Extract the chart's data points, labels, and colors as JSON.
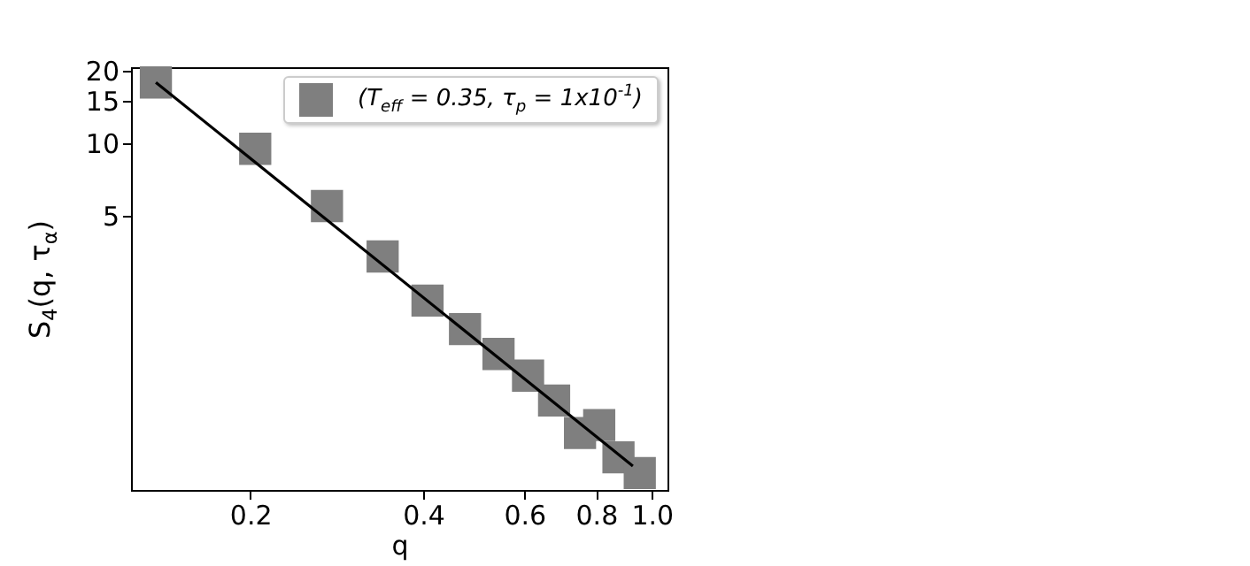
{
  "chart_data": {
    "type": "scatter",
    "xlabel": "q",
    "ylabel": "S$_{4}$(q, τ$_{α}$)",
    "log": "xy",
    "grid": false,
    "legend": "top right",
    "marker": "square",
    "xlim": [
      0.124,
      1.065
    ],
    "ylim": [
      0.366,
      20.7
    ],
    "xticks": [
      0.2,
      0.4,
      0.6,
      0.8,
      {
        "value": 1,
        "label": "1.0"
      }
    ],
    "yticks": [
      5,
      10,
      15,
      20
    ],
    "series": [
      {
        "name": "(T$_{eff}$ = 0.35, τ$_{p}$ = 1x10$^{-1}$)",
        "color": "#7f7f7f",
        "x": [
          0.137,
          0.204,
          0.272,
          0.34,
          0.407,
          0.473,
          0.541,
          0.609,
          0.676,
          0.75,
          0.81,
          0.875,
          0.953
        ],
        "values": [
          17.9,
          9.5,
          5.5,
          3.4,
          2.23,
          1.7,
          1.34,
          1.09,
          0.86,
          0.63,
          0.68,
          0.5,
          0.43
        ]
      },
      {
        "type": "line",
        "color": "#000000",
        "line_style": "solid",
        "marker": "none",
        "x": [
          0.137,
          0.927
        ],
        "values": [
          17.9,
          0.46
        ]
      }
    ]
  }
}
